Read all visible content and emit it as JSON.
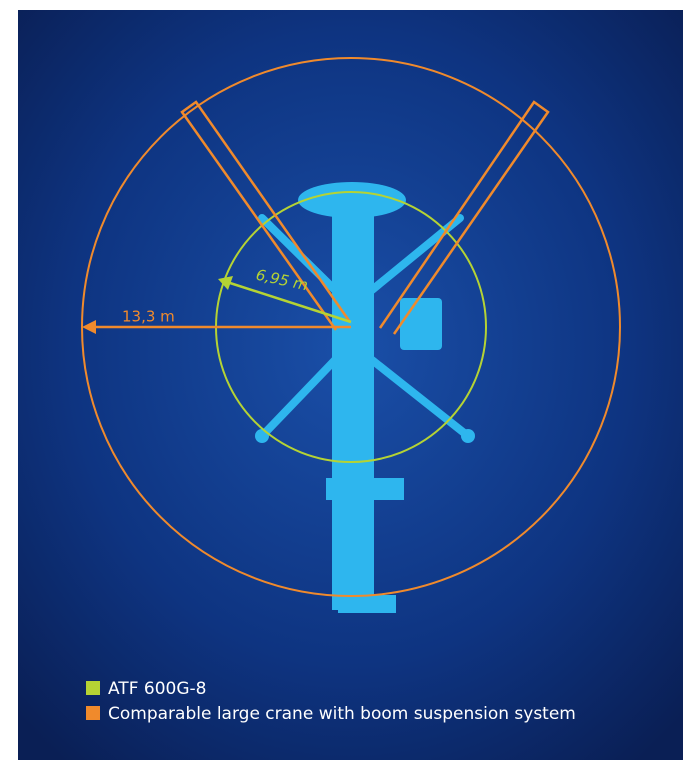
{
  "labels": {
    "orange_radius": "13,3 m",
    "green_radius": "6,95 m"
  },
  "legend": [
    {
      "label": "ATF 600G-8",
      "color": "#b5d334"
    },
    {
      "label": "Comparable large crane with boom suspension system",
      "color": "#f08a2c"
    }
  ]
}
